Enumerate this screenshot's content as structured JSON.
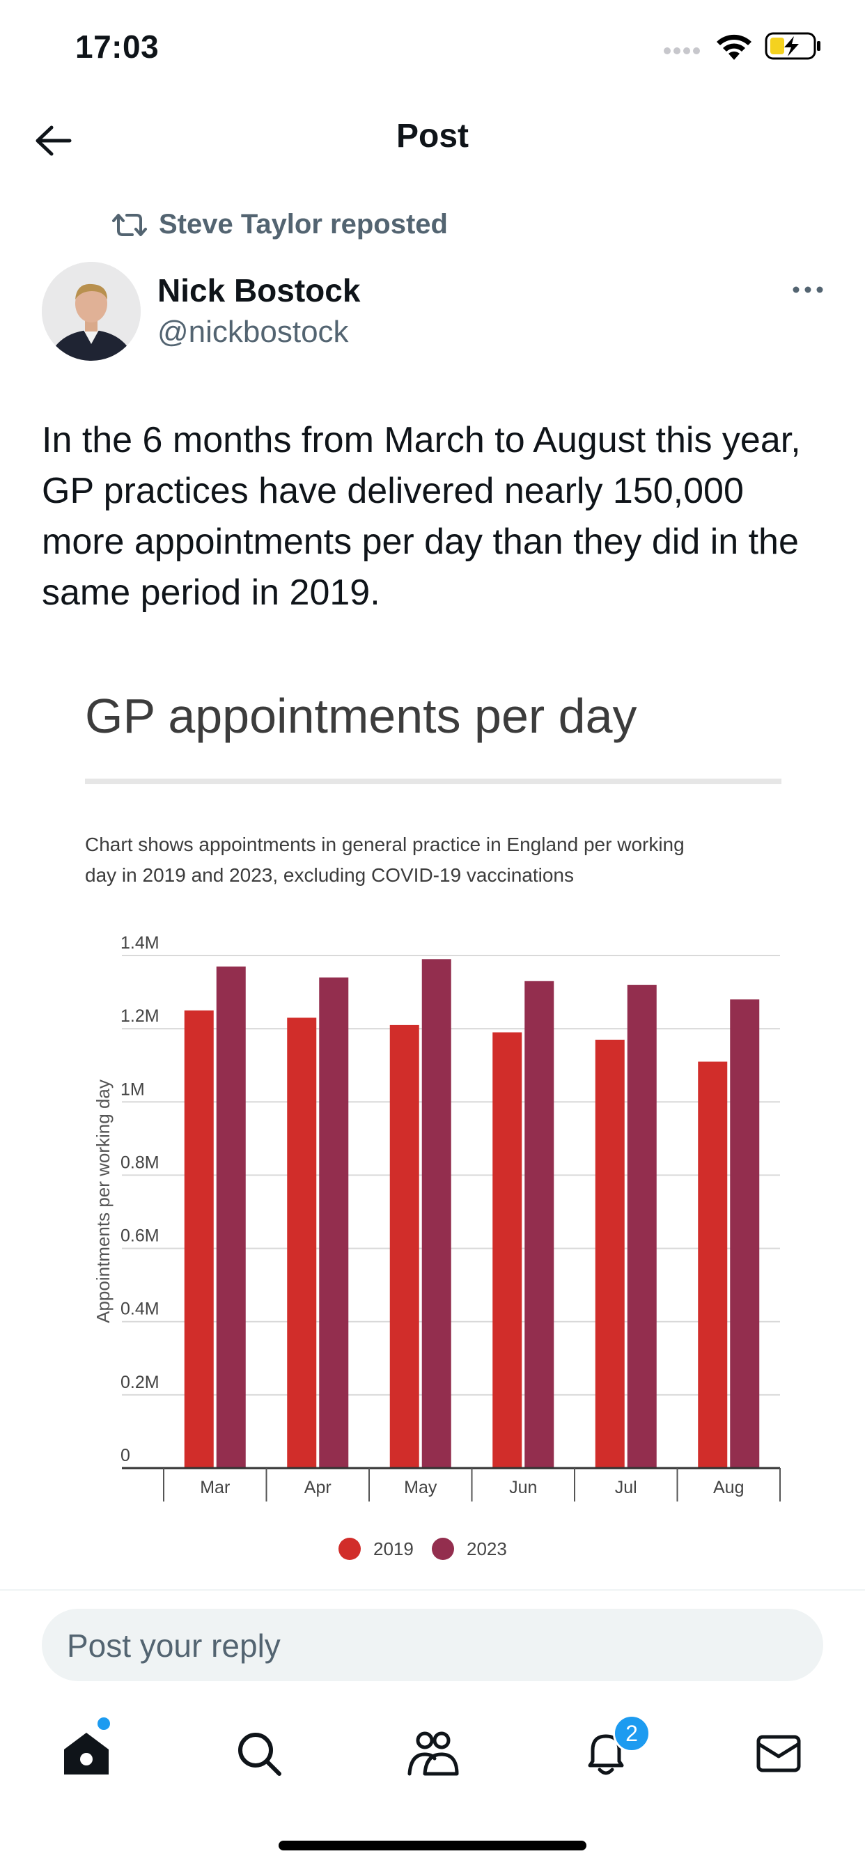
{
  "status_bar": {
    "time": "17:03"
  },
  "header": {
    "title": "Post"
  },
  "repost": {
    "label": "Steve Taylor reposted"
  },
  "author": {
    "name": "Nick Bostock",
    "handle": "@nickbostock"
  },
  "post": {
    "text": "In the 6 months from March to August this year, GP practices have delivered nearly 150,000 more appointments per day than they did in the same period in 2019."
  },
  "chart_data": {
    "type": "bar",
    "title": "GP appointments per day",
    "subtitle": "Chart shows appointments in general practice in England per working day in 2019 and 2023, excluding COVID-19 vaccinations",
    "ylabel": "Appointments per working day",
    "xlabel": "",
    "categories": [
      "Mar",
      "Apr",
      "May",
      "Jun",
      "Jul",
      "Aug"
    ],
    "ylim": [
      0,
      1400000
    ],
    "yticks": [
      {
        "value": 0,
        "label": "0"
      },
      {
        "value": 200000,
        "label": "0.2M"
      },
      {
        "value": 400000,
        "label": "0.4M"
      },
      {
        "value": 600000,
        "label": "0.6M"
      },
      {
        "value": 800000,
        "label": "0.8M"
      },
      {
        "value": 1000000,
        "label": "1M"
      },
      {
        "value": 1200000,
        "label": "1.2M"
      },
      {
        "value": 1400000,
        "label": "1.4M"
      }
    ],
    "series": [
      {
        "name": "2019",
        "color": "#d12d2a",
        "values": [
          1250000,
          1230000,
          1210000,
          1190000,
          1170000,
          1110000
        ]
      },
      {
        "name": "2023",
        "color": "#932e4e",
        "values": [
          1370000,
          1340000,
          1390000,
          1330000,
          1320000,
          1280000
        ]
      }
    ],
    "legend": "bottom-center",
    "grid": true
  },
  "reply": {
    "placeholder": "Post your reply"
  },
  "tabbar": {
    "notification_count": "2"
  }
}
